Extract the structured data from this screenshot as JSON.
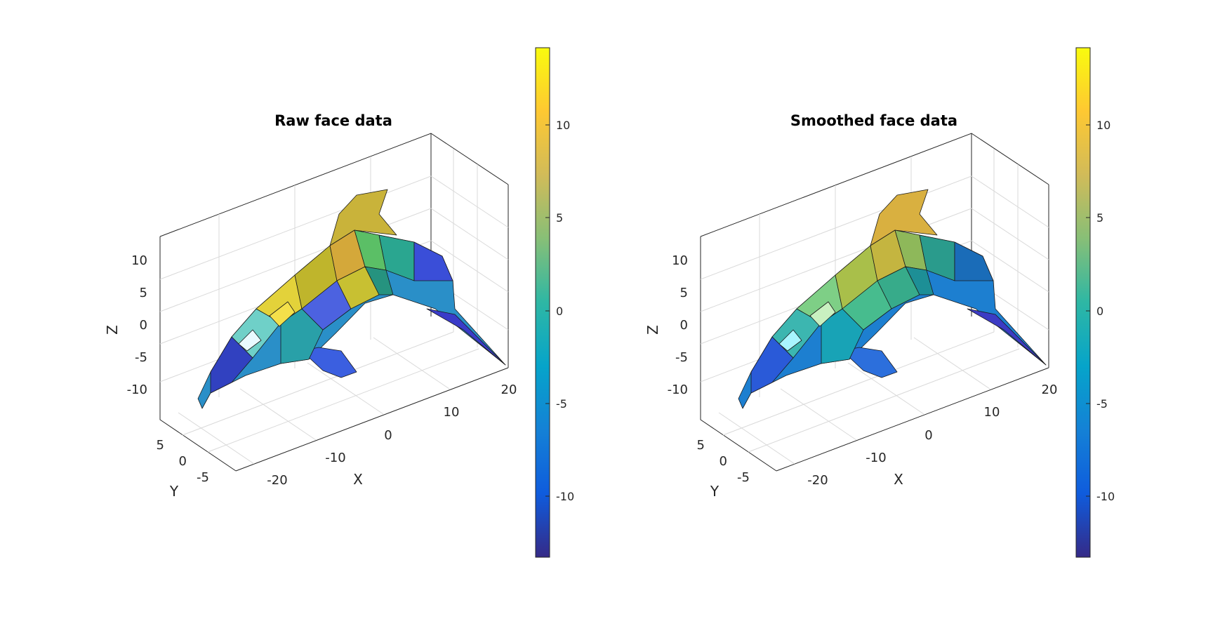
{
  "chart_data": [
    {
      "type": "3d-surface",
      "title": "Raw face data",
      "xlabel": "X",
      "ylabel": "Y",
      "zlabel": "Z",
      "x_ticks": [
        "-20",
        "-10",
        "0",
        "10",
        "20"
      ],
      "y_ticks": [
        "5",
        "0",
        "-5"
      ],
      "z_ticks": [
        "10",
        "5",
        "0",
        "-5",
        "-10"
      ],
      "colorbar_ticks": [
        "10",
        "5",
        "0",
        "-5",
        "-10"
      ],
      "clim": [
        -13.5,
        14
      ],
      "grid": true,
      "colormap": "parula",
      "shading": "faceted-noisy"
    },
    {
      "type": "3d-surface",
      "title": "Smoothed face data",
      "xlabel": "X",
      "ylabel": "Y",
      "zlabel": "Z",
      "x_ticks": [
        "-20",
        "-10",
        "0",
        "10",
        "20"
      ],
      "y_ticks": [
        "5",
        "0",
        "-5"
      ],
      "z_ticks": [
        "10",
        "5",
        "0",
        "-5",
        "-10"
      ],
      "colorbar_ticks": [
        "10",
        "5",
        "0",
        "-5",
        "-10"
      ],
      "clim": [
        -13.5,
        14
      ],
      "grid": true,
      "colormap": "parula",
      "shading": "faceted-smooth"
    }
  ]
}
